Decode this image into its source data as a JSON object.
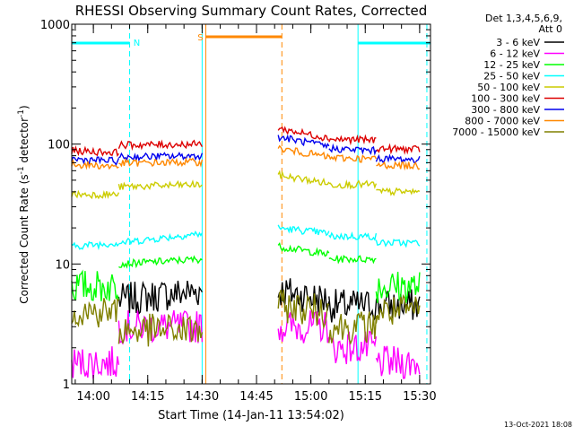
{
  "chart_data": {
    "type": "line",
    "title": "RHESSI Observing Summary Count Rates, Corrected",
    "xlabel": "Start Time (14-Jan-11 13:54:02)",
    "ylabel": "Corrected Count Rate (s",
    "ylabel_sup1": "-1",
    "ylabel_mid": " detector",
    "ylabel_sup2": "-1",
    "ylabel_end": ")",
    "y_scale": "log",
    "ylim": [
      1,
      1000
    ],
    "y_ticks": [
      {
        "value": 1,
        "label": "1"
      },
      {
        "value": 10,
        "label": "10"
      },
      {
        "value": 100,
        "label": "100"
      },
      {
        "value": 1000,
        "label": "1000"
      }
    ],
    "xlim": [
      "13:54:02",
      "15:33:00"
    ],
    "x_ticks": [
      {
        "value": "14:00",
        "label": "14:00"
      },
      {
        "value": "14:15",
        "label": "14:15"
      },
      {
        "value": "14:30",
        "label": "14:30"
      },
      {
        "value": "14:45",
        "label": "14:45"
      },
      {
        "value": "15:00",
        "label": "15:00"
      },
      {
        "value": "15:15",
        "label": "15:15"
      },
      {
        "value": "15:30",
        "label": "15:30"
      }
    ],
    "legend_header": [
      "Det 1,3,4,5,6,9,",
      "Att 0"
    ],
    "legend_position": "right",
    "timestamp": "13-Oct-2021 18:08",
    "series": [
      {
        "name": "3 - 6 keV",
        "color": "#000000",
        "segments": [
          {
            "start": "14:07",
            "end": "14:30",
            "level": 5.0,
            "end_level": 6.0
          },
          {
            "start": "14:51",
            "end": "15:05",
            "level": 6.0,
            "end_level": 5.0
          },
          {
            "start": "15:05",
            "end": "15:30",
            "level": 4.5,
            "end_level": 4.5
          }
        ]
      },
      {
        "name": "6 - 12 keV",
        "color": "#ff00ff",
        "segments": [
          {
            "start": "13:54",
            "end": "14:07",
            "level": 1.5,
            "end_level": 1.5
          },
          {
            "start": "14:07",
            "end": "14:30",
            "level": 3.0,
            "end_level": 3.0
          },
          {
            "start": "14:51",
            "end": "15:05",
            "level": 3.0,
            "end_level": 3.0
          },
          {
            "start": "15:05",
            "end": "15:18",
            "level": 2.0,
            "end_level": 2.0
          },
          {
            "start": "15:18",
            "end": "15:30",
            "level": 1.5,
            "end_level": 1.5
          }
        ]
      },
      {
        "name": "12 - 25 keV",
        "color": "#00ff00",
        "segments": [
          {
            "start": "13:54",
            "end": "14:07",
            "level": 6.5,
            "end_level": 6.5
          },
          {
            "start": "14:07",
            "end": "14:30",
            "level": 10.0,
            "end_level": 11.0
          },
          {
            "start": "14:51",
            "end": "15:05",
            "level": 14.0,
            "end_level": 12.0
          },
          {
            "start": "15:05",
            "end": "15:18",
            "level": 11.0,
            "end_level": 11.0
          },
          {
            "start": "15:18",
            "end": "15:30",
            "level": 6.5,
            "end_level": 6.5
          }
        ]
      },
      {
        "name": "25 - 50 keV",
        "color": "#00ffff",
        "segments": [
          {
            "start": "13:54",
            "end": "14:07",
            "level": 14.0,
            "end_level": 15.0
          },
          {
            "start": "14:07",
            "end": "14:30",
            "level": 15.0,
            "end_level": 18.0
          },
          {
            "start": "14:51",
            "end": "15:05",
            "level": 20.0,
            "end_level": 18.0
          },
          {
            "start": "15:05",
            "end": "15:18",
            "level": 17.0,
            "end_level": 17.0
          },
          {
            "start": "15:18",
            "end": "15:30",
            "level": 15.0,
            "end_level": 15.0
          }
        ]
      },
      {
        "name": "50 - 100 keV",
        "color": "#cccc00",
        "segments": [
          {
            "start": "13:54",
            "end": "14:07",
            "level": 38.0,
            "end_level": 38.0
          },
          {
            "start": "14:07",
            "end": "14:30",
            "level": 44.0,
            "end_level": 46.0
          },
          {
            "start": "14:51",
            "end": "15:05",
            "level": 55.0,
            "end_level": 47.0
          },
          {
            "start": "15:05",
            "end": "15:18",
            "level": 46.0,
            "end_level": 46.0
          },
          {
            "start": "15:18",
            "end": "15:30",
            "level": 40.0,
            "end_level": 40.0
          }
        ]
      },
      {
        "name": "100 - 300 keV",
        "color": "#dd0000",
        "segments": [
          {
            "start": "13:54",
            "end": "14:07",
            "level": 88.0,
            "end_level": 85.0
          },
          {
            "start": "14:07",
            "end": "14:30",
            "level": 98.0,
            "end_level": 100.0
          },
          {
            "start": "14:51",
            "end": "15:05",
            "level": 135.0,
            "end_level": 112.0
          },
          {
            "start": "15:05",
            "end": "15:18",
            "level": 110.0,
            "end_level": 108.0
          },
          {
            "start": "15:18",
            "end": "15:30",
            "level": 92.0,
            "end_level": 90.0
          }
        ]
      },
      {
        "name": "300 - 800 keV",
        "color": "#0000ee",
        "segments": [
          {
            "start": "13:54",
            "end": "14:07",
            "level": 75.0,
            "end_level": 72.0
          },
          {
            "start": "14:07",
            "end": "14:30",
            "level": 78.0,
            "end_level": 80.0
          },
          {
            "start": "14:51",
            "end": "15:05",
            "level": 115.0,
            "end_level": 95.0
          },
          {
            "start": "15:05",
            "end": "15:18",
            "level": 92.0,
            "end_level": 88.0
          },
          {
            "start": "15:18",
            "end": "15:30",
            "level": 76.0,
            "end_level": 74.0
          }
        ]
      },
      {
        "name": "800 - 7000 keV",
        "color": "#ff8800",
        "segments": [
          {
            "start": "13:54",
            "end": "14:07",
            "level": 68.0,
            "end_level": 65.0
          },
          {
            "start": "14:07",
            "end": "14:30",
            "level": 69.0,
            "end_level": 71.0
          },
          {
            "start": "14:51",
            "end": "15:05",
            "level": 92.0,
            "end_level": 78.0
          },
          {
            "start": "15:05",
            "end": "15:18",
            "level": 77.0,
            "end_level": 75.0
          },
          {
            "start": "15:18",
            "end": "15:30",
            "level": 67.0,
            "end_level": 66.0
          }
        ]
      },
      {
        "name": "7000 - 15000 keV",
        "color": "#808000",
        "segments": [
          {
            "start": "13:54",
            "end": "14:07",
            "level": 4.0,
            "end_level": 4.0
          },
          {
            "start": "14:07",
            "end": "14:30",
            "level": 2.8,
            "end_level": 2.8
          },
          {
            "start": "14:51",
            "end": "15:05",
            "level": 4.5,
            "end_level": 4.0
          },
          {
            "start": "15:05",
            "end": "15:18",
            "level": 3.0,
            "end_level": 3.0
          },
          {
            "start": "15:18",
            "end": "15:30",
            "level": 4.0,
            "end_level": 4.0
          }
        ]
      }
    ],
    "flags": [
      {
        "type": "night",
        "label": "N",
        "color": "#00ffff",
        "bars": [
          {
            "start": "13:54:02",
            "end": "14:10"
          },
          {
            "start": "15:13",
            "end": "15:33"
          }
        ]
      },
      {
        "type": "saa",
        "label": "S",
        "color": "#ff8800",
        "bars": [
          {
            "start": "14:31",
            "end": "14:52"
          }
        ]
      }
    ],
    "markers": [
      {
        "time": "14:10",
        "color": "#00ffff",
        "style": "dashed"
      },
      {
        "time": "15:32",
        "color": "#00ffff",
        "style": "dashed"
      },
      {
        "time": "14:52",
        "color": "#ff8800",
        "style": "dashed"
      },
      {
        "time": "14:30",
        "color": "#00ffff",
        "style": "solid"
      },
      {
        "time": "15:13",
        "color": "#00ffff",
        "style": "solid"
      },
      {
        "time": "14:31",
        "color": "#ff8800",
        "style": "solid"
      }
    ]
  }
}
